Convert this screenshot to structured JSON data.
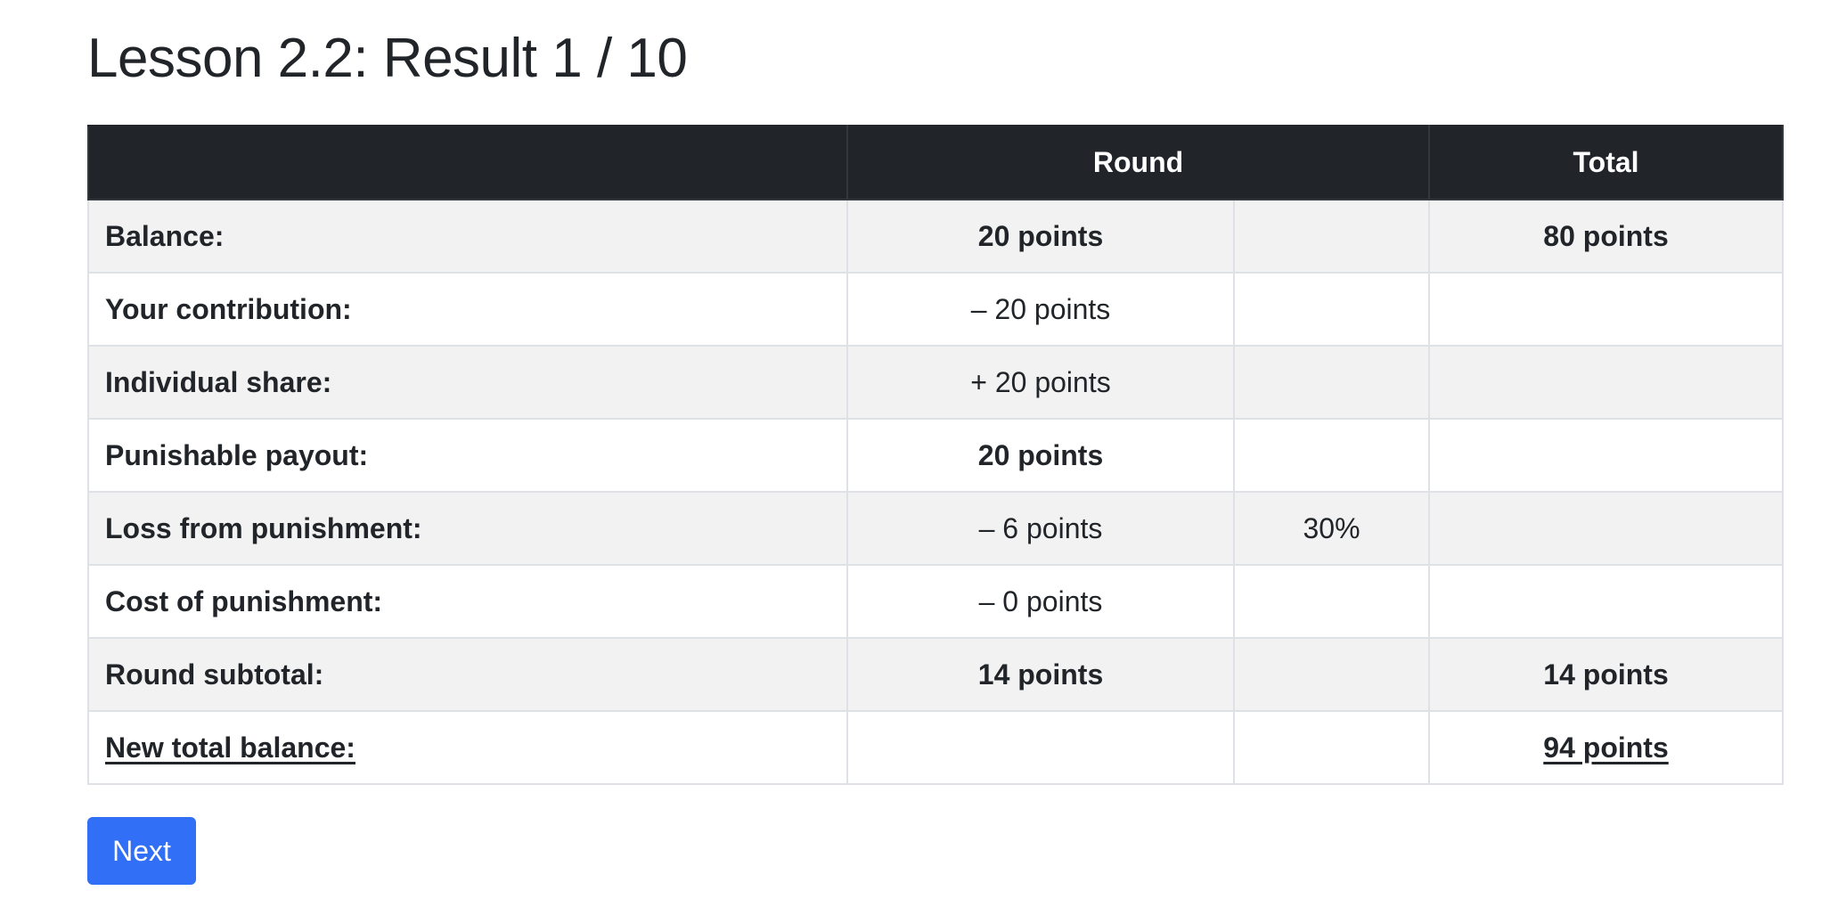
{
  "header": {
    "title": "Lesson 2.2: Result 1 / 10"
  },
  "table": {
    "headers": {
      "label": "",
      "round": "Round",
      "total": "Total"
    },
    "rows": [
      {
        "label": "Balance:",
        "round": "20 points",
        "pct": "",
        "total": "80 points"
      },
      {
        "label": "Your contribution:",
        "round": "– 20 points",
        "pct": "",
        "total": ""
      },
      {
        "label": "Individual share:",
        "round": "+ 20 points",
        "pct": "",
        "total": ""
      },
      {
        "label": "Punishable payout:",
        "round": "20 points",
        "pct": "",
        "total": ""
      },
      {
        "label": "Loss from punishment:",
        "round": "– 6 points",
        "pct": "30%",
        "total": ""
      },
      {
        "label": "Cost of punishment:",
        "round": "– 0 points",
        "pct": "",
        "total": ""
      },
      {
        "label": "Round subtotal:",
        "round": "14 points",
        "pct": "",
        "total": "14 points"
      },
      {
        "label": "New total balance:",
        "round": "",
        "pct": "",
        "total": "94 points"
      }
    ]
  },
  "actions": {
    "next_label": "Next"
  },
  "colors": {
    "header_bg": "#212529",
    "stripe_bg": "#f2f2f2",
    "button_bg": "#316ff6"
  }
}
